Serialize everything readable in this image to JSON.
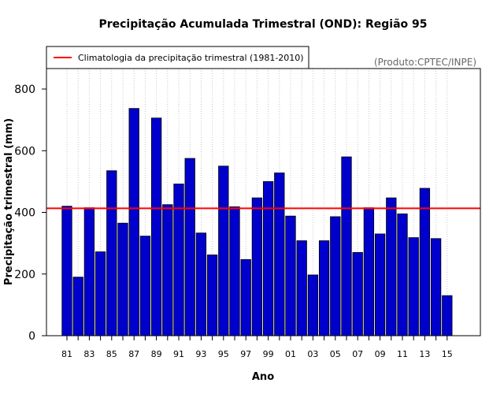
{
  "chart_data": {
    "type": "bar",
    "title": "Precipitação Acumulada Trimestral (OND): Região 95",
    "xlabel": "Ano",
    "ylabel": "Precipitação trimestral (mm)",
    "credit": "(Produto:CPTEC/INPE)",
    "legend": {
      "label": "Climatologia da precipitação trimestral (1981-2010)",
      "placement": "top-left"
    },
    "ylim": [
      0,
      900
    ],
    "yticks": [
      0,
      200,
      400,
      600,
      800
    ],
    "categories": [
      "81",
      "82",
      "83",
      "84",
      "85",
      "86",
      "87",
      "88",
      "89",
      "90",
      "91",
      "92",
      "93",
      "94",
      "95",
      "96",
      "97",
      "98",
      "99",
      "00",
      "01",
      "02",
      "03",
      "04",
      "05",
      "06",
      "07",
      "08",
      "09",
      "10",
      "11",
      "12",
      "13",
      "14",
      "15"
    ],
    "values": [
      420,
      190,
      415,
      272,
      535,
      365,
      737,
      323,
      706,
      425,
      492,
      575,
      333,
      262,
      550,
      418,
      247,
      447,
      500,
      528,
      388,
      308,
      197,
      308,
      386,
      580,
      270,
      415,
      330,
      447,
      395,
      318,
      478,
      315,
      130
    ],
    "xtick_labels": [
      "81",
      "83",
      "85",
      "87",
      "89",
      "91",
      "93",
      "95",
      "97",
      "99",
      "01",
      "03",
      "05",
      "07",
      "09",
      "11",
      "13",
      "15"
    ],
    "climatology": 413,
    "colors": {
      "bar": "#0000cd",
      "line": "#ff0000",
      "grid": "#c8c8c8"
    }
  }
}
